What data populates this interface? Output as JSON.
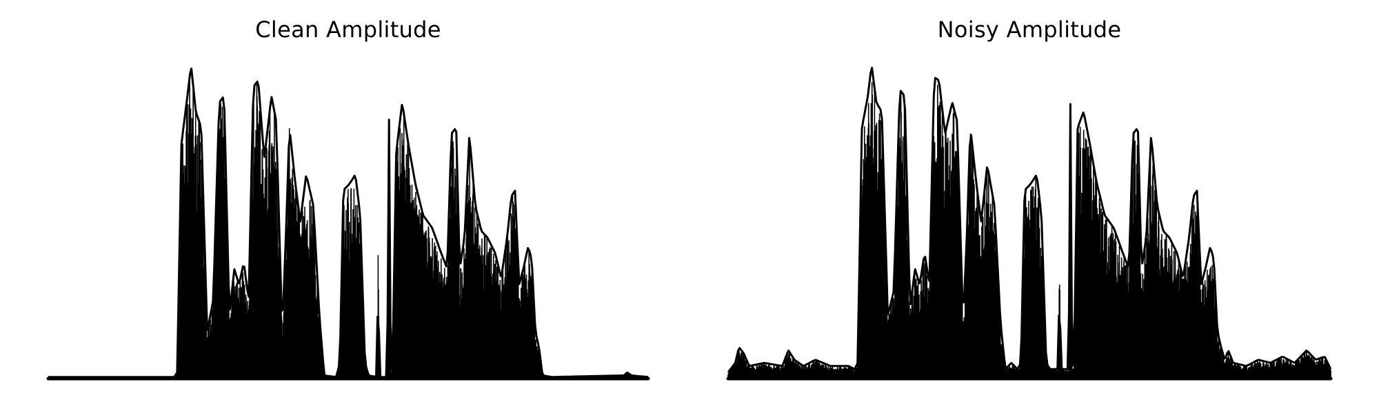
{
  "chart_data": [
    {
      "type": "line",
      "title": "Clean Amplitude",
      "color": "#000000",
      "axis": "off",
      "grid": false,
      "ylim": [
        0,
        1
      ],
      "envelope_keys": [
        [
          0.0,
          0.005
        ],
        [
          0.21,
          0.005
        ],
        [
          0.215,
          0.02
        ],
        [
          0.222,
          0.75
        ],
        [
          0.232,
          0.9
        ],
        [
          0.238,
          1.0
        ],
        [
          0.246,
          0.85
        ],
        [
          0.255,
          0.8
        ],
        [
          0.265,
          0.15
        ],
        [
          0.275,
          0.25
        ],
        [
          0.285,
          0.88
        ],
        [
          0.293,
          0.9
        ],
        [
          0.302,
          0.2
        ],
        [
          0.31,
          0.35
        ],
        [
          0.318,
          0.3
        ],
        [
          0.326,
          0.37
        ],
        [
          0.334,
          0.25
        ],
        [
          0.342,
          0.93
        ],
        [
          0.35,
          0.95
        ],
        [
          0.36,
          0.7
        ],
        [
          0.372,
          0.9
        ],
        [
          0.38,
          0.82
        ],
        [
          0.39,
          0.15
        ],
        [
          0.396,
          0.45
        ],
        [
          0.402,
          0.8
        ],
        [
          0.412,
          0.62
        ],
        [
          0.42,
          0.5
        ],
        [
          0.43,
          0.65
        ],
        [
          0.442,
          0.55
        ],
        [
          0.452,
          0.2
        ],
        [
          0.46,
          0.01
        ],
        [
          0.48,
          0.005
        ],
        [
          0.486,
          0.05
        ],
        [
          0.492,
          0.6
        ],
        [
          0.502,
          0.62
        ],
        [
          0.512,
          0.65
        ],
        [
          0.52,
          0.52
        ],
        [
          0.528,
          0.05
        ],
        [
          0.534,
          0.01
        ],
        [
          0.548,
          0.005
        ],
        [
          0.55,
          0.42
        ],
        [
          0.552,
          0.005
        ],
        [
          0.565,
          0.005
        ],
        [
          0.568,
          0.83
        ],
        [
          0.571,
          0.005
        ],
        [
          0.574,
          0.05
        ],
        [
          0.58,
          0.72
        ],
        [
          0.59,
          0.88
        ],
        [
          0.6,
          0.75
        ],
        [
          0.612,
          0.62
        ],
        [
          0.625,
          0.52
        ],
        [
          0.64,
          0.48
        ],
        [
          0.655,
          0.4
        ],
        [
          0.665,
          0.35
        ],
        [
          0.672,
          0.78
        ],
        [
          0.68,
          0.8
        ],
        [
          0.686,
          0.35
        ],
        [
          0.694,
          0.45
        ],
        [
          0.702,
          0.78
        ],
        [
          0.712,
          0.55
        ],
        [
          0.722,
          0.47
        ],
        [
          0.732,
          0.45
        ],
        [
          0.745,
          0.4
        ],
        [
          0.755,
          0.32
        ],
        [
          0.765,
          0.45
        ],
        [
          0.772,
          0.58
        ],
        [
          0.778,
          0.6
        ],
        [
          0.785,
          0.3
        ],
        [
          0.792,
          0.35
        ],
        [
          0.8,
          0.42
        ],
        [
          0.806,
          0.38
        ],
        [
          0.812,
          0.15
        ],
        [
          0.818,
          0.1
        ],
        [
          0.824,
          0.01
        ],
        [
          0.84,
          0.005
        ],
        [
          0.96,
          0.01
        ],
        [
          0.965,
          0.02
        ],
        [
          0.972,
          0.01
        ],
        [
          1.0,
          0.005
        ]
      ]
    },
    {
      "type": "line",
      "title": "Noisy Amplitude",
      "color": "#000000",
      "axis": "off",
      "grid": false,
      "ylim": [
        0,
        1
      ],
      "envelope_keys": [
        [
          0.0,
          0.02
        ],
        [
          0.012,
          0.05
        ],
        [
          0.018,
          0.1
        ],
        [
          0.026,
          0.08
        ],
        [
          0.035,
          0.04
        ],
        [
          0.06,
          0.05
        ],
        [
          0.09,
          0.04
        ],
        [
          0.1,
          0.09
        ],
        [
          0.11,
          0.06
        ],
        [
          0.125,
          0.04
        ],
        [
          0.145,
          0.06
        ],
        [
          0.17,
          0.04
        ],
        [
          0.2,
          0.04
        ],
        [
          0.21,
          0.03
        ],
        [
          0.215,
          0.05
        ],
        [
          0.222,
          0.8
        ],
        [
          0.232,
          0.9
        ],
        [
          0.238,
          1.0
        ],
        [
          0.246,
          0.88
        ],
        [
          0.255,
          0.85
        ],
        [
          0.265,
          0.2
        ],
        [
          0.275,
          0.28
        ],
        [
          0.285,
          0.92
        ],
        [
          0.293,
          0.9
        ],
        [
          0.302,
          0.22
        ],
        [
          0.31,
          0.35
        ],
        [
          0.318,
          0.3
        ],
        [
          0.326,
          0.4
        ],
        [
          0.334,
          0.3
        ],
        [
          0.342,
          0.96
        ],
        [
          0.35,
          0.95
        ],
        [
          0.36,
          0.78
        ],
        [
          0.372,
          0.88
        ],
        [
          0.38,
          0.82
        ],
        [
          0.39,
          0.18
        ],
        [
          0.396,
          0.45
        ],
        [
          0.402,
          0.8
        ],
        [
          0.412,
          0.62
        ],
        [
          0.42,
          0.5
        ],
        [
          0.43,
          0.68
        ],
        [
          0.442,
          0.55
        ],
        [
          0.452,
          0.18
        ],
        [
          0.46,
          0.03
        ],
        [
          0.47,
          0.05
        ],
        [
          0.48,
          0.03
        ],
        [
          0.486,
          0.05
        ],
        [
          0.492,
          0.6
        ],
        [
          0.502,
          0.62
        ],
        [
          0.512,
          0.65
        ],
        [
          0.52,
          0.52
        ],
        [
          0.528,
          0.05
        ],
        [
          0.534,
          0.03
        ],
        [
          0.548,
          0.03
        ],
        [
          0.55,
          0.4
        ],
        [
          0.552,
          0.03
        ],
        [
          0.565,
          0.03
        ],
        [
          0.568,
          0.88
        ],
        [
          0.571,
          0.03
        ],
        [
          0.574,
          0.05
        ],
        [
          0.58,
          0.8
        ],
        [
          0.59,
          0.85
        ],
        [
          0.6,
          0.75
        ],
        [
          0.612,
          0.62
        ],
        [
          0.625,
          0.52
        ],
        [
          0.64,
          0.48
        ],
        [
          0.655,
          0.4
        ],
        [
          0.665,
          0.35
        ],
        [
          0.672,
          0.78
        ],
        [
          0.68,
          0.8
        ],
        [
          0.686,
          0.35
        ],
        [
          0.694,
          0.45
        ],
        [
          0.702,
          0.78
        ],
        [
          0.712,
          0.55
        ],
        [
          0.722,
          0.47
        ],
        [
          0.732,
          0.45
        ],
        [
          0.745,
          0.4
        ],
        [
          0.755,
          0.32
        ],
        [
          0.765,
          0.45
        ],
        [
          0.772,
          0.58
        ],
        [
          0.778,
          0.6
        ],
        [
          0.785,
          0.3
        ],
        [
          0.792,
          0.35
        ],
        [
          0.8,
          0.42
        ],
        [
          0.806,
          0.38
        ],
        [
          0.812,
          0.15
        ],
        [
          0.818,
          0.1
        ],
        [
          0.824,
          0.06
        ],
        [
          0.83,
          0.09
        ],
        [
          0.838,
          0.05
        ],
        [
          0.86,
          0.04
        ],
        [
          0.88,
          0.06
        ],
        [
          0.9,
          0.05
        ],
        [
          0.92,
          0.07
        ],
        [
          0.94,
          0.05
        ],
        [
          0.96,
          0.09
        ],
        [
          0.975,
          0.06
        ],
        [
          0.99,
          0.07
        ],
        [
          1.0,
          0.03
        ]
      ]
    }
  ]
}
